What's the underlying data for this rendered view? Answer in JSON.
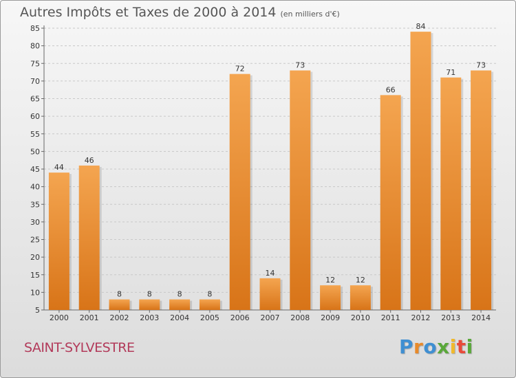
{
  "title": "Autres Impôts et Taxes de 2000 à 2014",
  "subtitle": "(en milliers d'€)",
  "commune": "SAINT-SYLVESTRE",
  "logo": {
    "letters": [
      "P",
      "r",
      "o",
      "x",
      "i",
      "t",
      "i"
    ],
    "colors": [
      "#3f8fd2",
      "#e88a2a",
      "#3f8fd2",
      "#5aa83a",
      "#f0b92c",
      "#e84a3a",
      "#5aa83a"
    ]
  },
  "colors": {
    "bar_top": "#f4a550",
    "bar_bottom": "#d87418",
    "grid": "#c8c8c8",
    "axis_text": "#333333",
    "label_text": "#333333"
  },
  "chart_data": {
    "type": "bar",
    "categories": [
      "2000",
      "2001",
      "2002",
      "2003",
      "2004",
      "2005",
      "2006",
      "2007",
      "2008",
      "2009",
      "2010",
      "2011",
      "2012",
      "2013",
      "2014"
    ],
    "values": [
      44,
      46,
      8,
      8,
      8,
      8,
      72,
      14,
      73,
      12,
      12,
      66,
      84,
      71,
      73
    ],
    "ylim": [
      5,
      85
    ],
    "yticks": [
      5,
      10,
      15,
      20,
      25,
      30,
      35,
      40,
      45,
      50,
      55,
      60,
      65,
      70,
      75,
      80,
      85
    ],
    "grid": true,
    "data_labels": true
  }
}
